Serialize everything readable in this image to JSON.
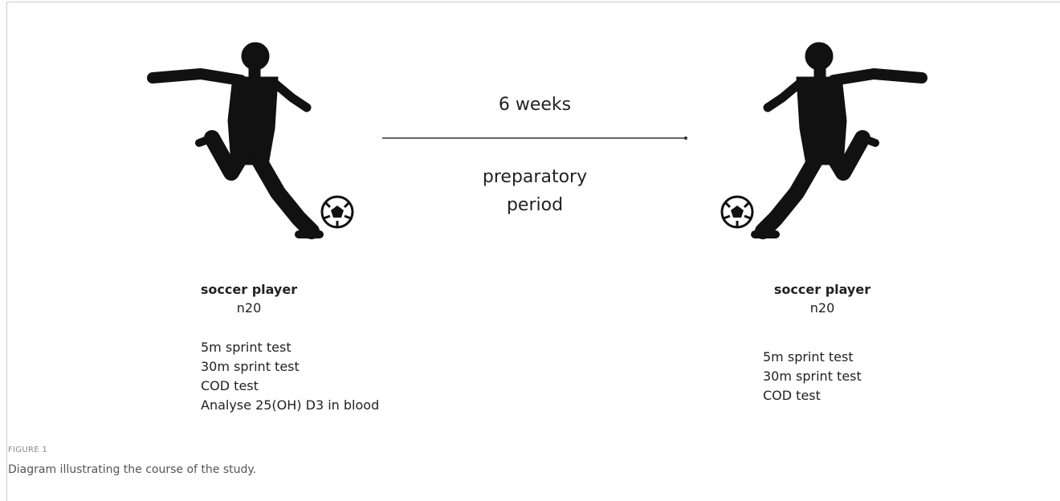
{
  "left": {
    "title": "soccer player",
    "n": "n20",
    "tests": [
      "5m sprint test",
      "30m sprint test",
      "COD test",
      "Analyse 25(OH) D3 in blood"
    ]
  },
  "middle": {
    "duration": "6 weeks",
    "label": "preparatory period"
  },
  "right": {
    "title": "soccer player",
    "n": "n20",
    "tests": [
      "5m sprint test",
      "30m sprint test",
      "COD test"
    ]
  },
  "caption": {
    "label": "FIGURE 1",
    "text": "Diagram illustrating the course of the study."
  }
}
